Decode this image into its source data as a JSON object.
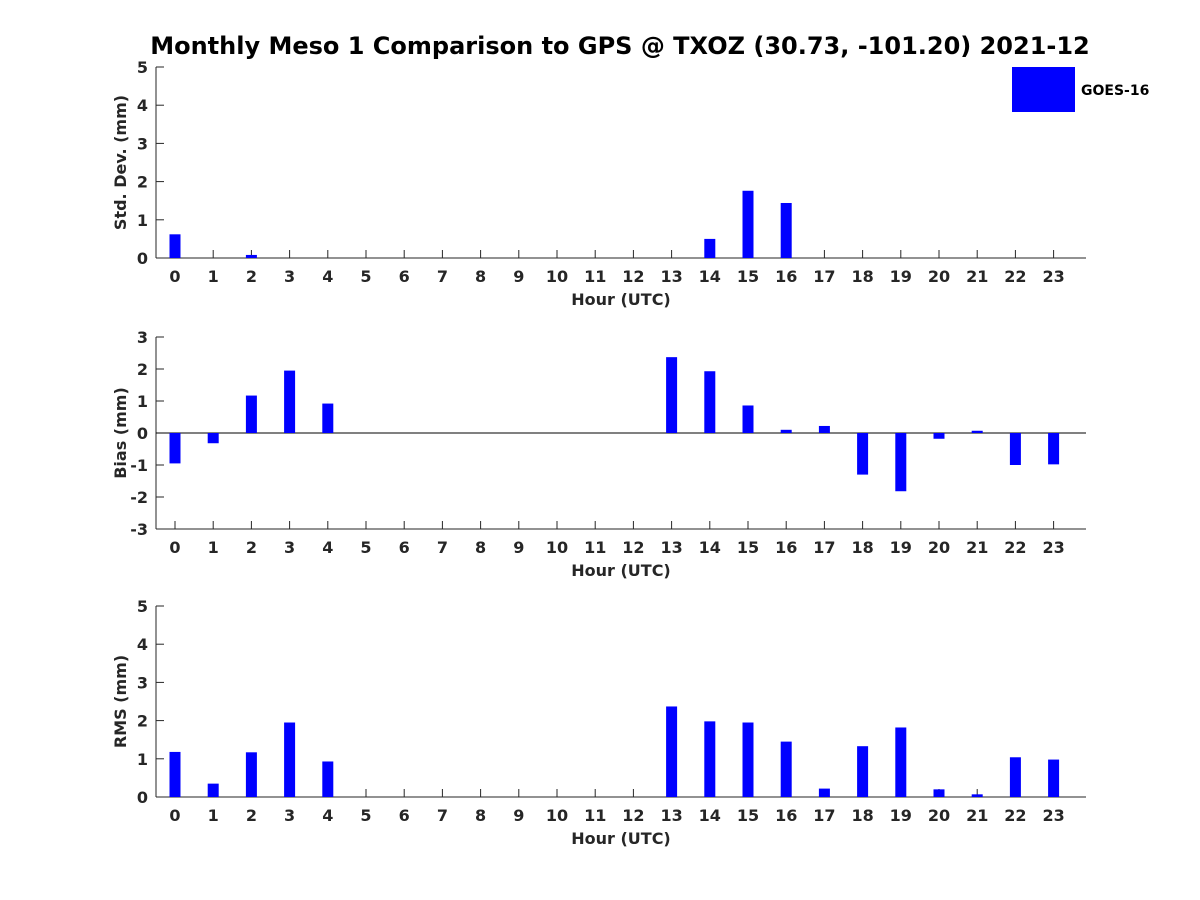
{
  "title": "Monthly Meso 1 Comparison to GPS @ TXOZ (30.73, -101.20) 2021-12",
  "legend": {
    "label": "GOES-16",
    "color": "#0000ff",
    "position": "top-right"
  },
  "chart_data": [
    {
      "type": "bar",
      "ylabel": "Std. Dev. (mm)",
      "xlabel": "Hour (UTC)",
      "categories": [
        "0",
        "1",
        "2",
        "3",
        "4",
        "5",
        "6",
        "7",
        "8",
        "9",
        "10",
        "11",
        "12",
        "13",
        "14",
        "15",
        "16",
        "17",
        "18",
        "19",
        "20",
        "21",
        "22",
        "23"
      ],
      "ylim": [
        0,
        5
      ],
      "yticks": [
        "0",
        "1",
        "2",
        "3",
        "4",
        "5"
      ],
      "series": [
        {
          "name": "GOES-16",
          "color": "#0000ff",
          "values": [
            0.62,
            0,
            0.08,
            0,
            0,
            0,
            0,
            0,
            0,
            0,
            0,
            0,
            0,
            0,
            0.5,
            1.76,
            1.44,
            0,
            0,
            0,
            0,
            0,
            0,
            0
          ]
        }
      ]
    },
    {
      "type": "bar",
      "ylabel": "Bias (mm)",
      "xlabel": "Hour (UTC)",
      "categories": [
        "0",
        "1",
        "2",
        "3",
        "4",
        "5",
        "6",
        "7",
        "8",
        "9",
        "10",
        "11",
        "12",
        "13",
        "14",
        "15",
        "16",
        "17",
        "18",
        "19",
        "20",
        "21",
        "22",
        "23"
      ],
      "ylim": [
        -3,
        3
      ],
      "yticks": [
        "-3",
        "-2",
        "-1",
        "0",
        "1",
        "2",
        "3"
      ],
      "zero_line": true,
      "series": [
        {
          "name": "GOES-16",
          "color": "#0000ff",
          "values": [
            -0.95,
            -0.32,
            1.17,
            1.95,
            0.92,
            0,
            0,
            0,
            0,
            0,
            0,
            0,
            0,
            2.37,
            1.93,
            0.86,
            0.1,
            0.22,
            -1.3,
            -1.82,
            -0.18,
            0.07,
            -1.0,
            -0.98
          ]
        }
      ]
    },
    {
      "type": "bar",
      "ylabel": "RMS (mm)",
      "xlabel": "Hour (UTC)",
      "categories": [
        "0",
        "1",
        "2",
        "3",
        "4",
        "5",
        "6",
        "7",
        "8",
        "9",
        "10",
        "11",
        "12",
        "13",
        "14",
        "15",
        "16",
        "17",
        "18",
        "19",
        "20",
        "21",
        "22",
        "23"
      ],
      "ylim": [
        0,
        5
      ],
      "yticks": [
        "0",
        "1",
        "2",
        "3",
        "4",
        "5"
      ],
      "series": [
        {
          "name": "GOES-16",
          "color": "#0000ff",
          "values": [
            1.18,
            0.35,
            1.17,
            1.95,
            0.93,
            0,
            0,
            0,
            0,
            0,
            0,
            0,
            0,
            2.37,
            1.98,
            1.95,
            1.45,
            0.22,
            1.33,
            1.82,
            0.2,
            0.07,
            1.04,
            0.98
          ]
        }
      ]
    }
  ]
}
